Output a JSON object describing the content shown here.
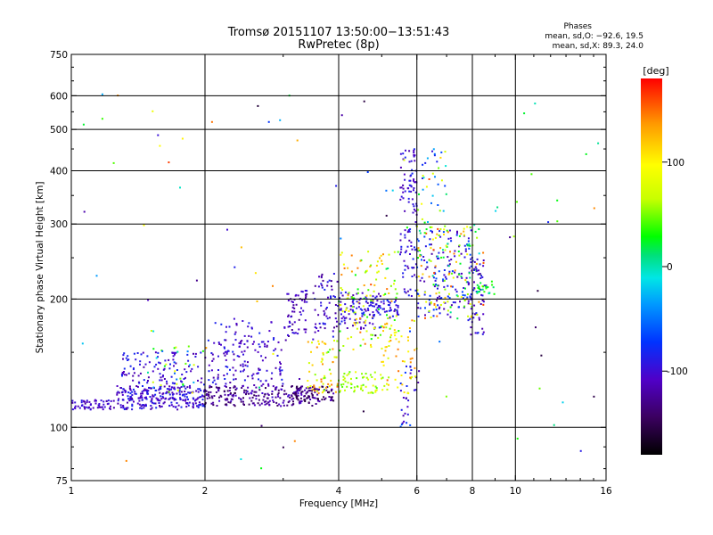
{
  "chart_data": {
    "type": "scatter",
    "title": "Tromsø 20151107 13:50:00−13:51:43",
    "subtitle": "RwPretec (8p)",
    "xlabel": "Frequency [MHz]",
    "ylabel": "Stationary phase Virtual Height [km]",
    "x_scale": "log",
    "y_scale": "log",
    "xlim": [
      1,
      16
    ],
    "ylim": [
      75,
      750
    ],
    "xticks": [
      1,
      2,
      4,
      6,
      8,
      10,
      16
    ],
    "yticks": [
      75,
      100,
      200,
      300,
      400,
      500,
      600,
      750
    ],
    "x_gridlines": [
      2,
      4,
      6,
      8,
      10
    ],
    "y_gridlines": [
      100,
      200,
      300,
      400,
      500,
      600
    ],
    "grid": true,
    "legend": {
      "heading": "Phases",
      "lines": [
        "mean, sd,O: −92.6, 19.5",
        "mean, sd,X: 89.3, 24.0"
      ],
      "position": "top-right"
    },
    "colorbar": {
      "label": "[deg]",
      "range": [
        -180,
        180
      ],
      "ticks": [
        100,
        0,
        -100
      ],
      "colormap": "rainbow (black → violet → blue → cyan → green → yellow → red)"
    },
    "clusters": [
      {
        "x": [
          1.0,
          1.25
        ],
        "y": [
          110,
          116
        ],
        "phase": [
          -90,
          -120
        ],
        "n": 60
      },
      {
        "x": [
          1.25,
          2.0
        ],
        "y": [
          110,
          125
        ],
        "phase": [
          -120,
          -80
        ],
        "n": 220
      },
      {
        "x": [
          1.3,
          2.0
        ],
        "y": [
          115,
          150
        ],
        "phase": [
          -120,
          -80
        ],
        "n": 150
      },
      {
        "x": [
          1.5,
          2.0
        ],
        "y": [
          120,
          170
        ],
        "phase": [
          -60,
          100
        ],
        "n": 30
      },
      {
        "x": [
          2.0,
          3.6
        ],
        "y": [
          112,
          125
        ],
        "phase": [
          -150,
          -100
        ],
        "n": 220
      },
      {
        "x": [
          2.0,
          3.0
        ],
        "y": [
          125,
          160
        ],
        "phase": [
          -120,
          -80
        ],
        "n": 120
      },
      {
        "x": [
          2.1,
          2.9
        ],
        "y": [
          150,
          180
        ],
        "phase": [
          -120,
          -80
        ],
        "n": 40
      },
      {
        "x": [
          3.0,
          3.4
        ],
        "y": [
          160,
          210
        ],
        "phase": [
          -130,
          -90
        ],
        "n": 60
      },
      {
        "x": [
          3.2,
          3.9
        ],
        "y": [
          115,
          125
        ],
        "phase": [
          -160,
          -110
        ],
        "n": 70
      },
      {
        "x": [
          3.4,
          4.0
        ],
        "y": [
          120,
          160
        ],
        "phase": [
          30,
          150
        ],
        "n": 60
      },
      {
        "x": [
          3.5,
          4.0
        ],
        "y": [
          160,
          230
        ],
        "phase": [
          -130,
          -80
        ],
        "n": 60
      },
      {
        "x": [
          4.0,
          5.2
        ],
        "y": [
          120,
          135
        ],
        "phase": [
          40,
          90
        ],
        "n": 60
      },
      {
        "x": [
          4.0,
          5.0
        ],
        "y": [
          170,
          210
        ],
        "phase": [
          -120,
          -80
        ],
        "n": 80
      },
      {
        "x": [
          4.0,
          5.5
        ],
        "y": [
          150,
          260
        ],
        "phase": [
          20,
          150
        ],
        "n": 130
      },
      {
        "x": [
          4.3,
          5.5
        ],
        "y": [
          180,
          200
        ],
        "phase": [
          -110,
          -70
        ],
        "n": 60
      },
      {
        "x": [
          5.5,
          6.0
        ],
        "y": [
          200,
          450
        ],
        "phase": [
          -120,
          -80
        ],
        "n": 110
      },
      {
        "x": [
          5.5,
          6.1
        ],
        "y": [
          100,
          140
        ],
        "phase": [
          -120,
          -60
        ],
        "n": 30
      },
      {
        "x": [
          5.0,
          6.0
        ],
        "y": [
          120,
          180
        ],
        "phase": [
          60,
          150
        ],
        "n": 50
      },
      {
        "x": [
          6.0,
          8.0
        ],
        "y": [
          180,
          290
        ],
        "phase": [
          -120,
          -60
        ],
        "n": 150
      },
      {
        "x": [
          6.0,
          8.5
        ],
        "y": [
          180,
          300
        ],
        "phase": [
          0,
          160
        ],
        "n": 130
      },
      {
        "x": [
          6.0,
          7.0
        ],
        "y": [
          280,
          450
        ],
        "phase": [
          -100,
          120
        ],
        "n": 40
      },
      {
        "x": [
          7.8,
          8.6
        ],
        "y": [
          165,
          250
        ],
        "phase": [
          -120,
          -80
        ],
        "n": 60
      },
      {
        "x": [
          8.2,
          9.0
        ],
        "y": [
          205,
          220
        ],
        "phase": [
          0,
          40
        ],
        "n": 25
      },
      {
        "x": [
          1.0,
          16.0
        ],
        "y": [
          80,
          620
        ],
        "phase": [
          -160,
          170
        ],
        "n": 90
      }
    ]
  }
}
